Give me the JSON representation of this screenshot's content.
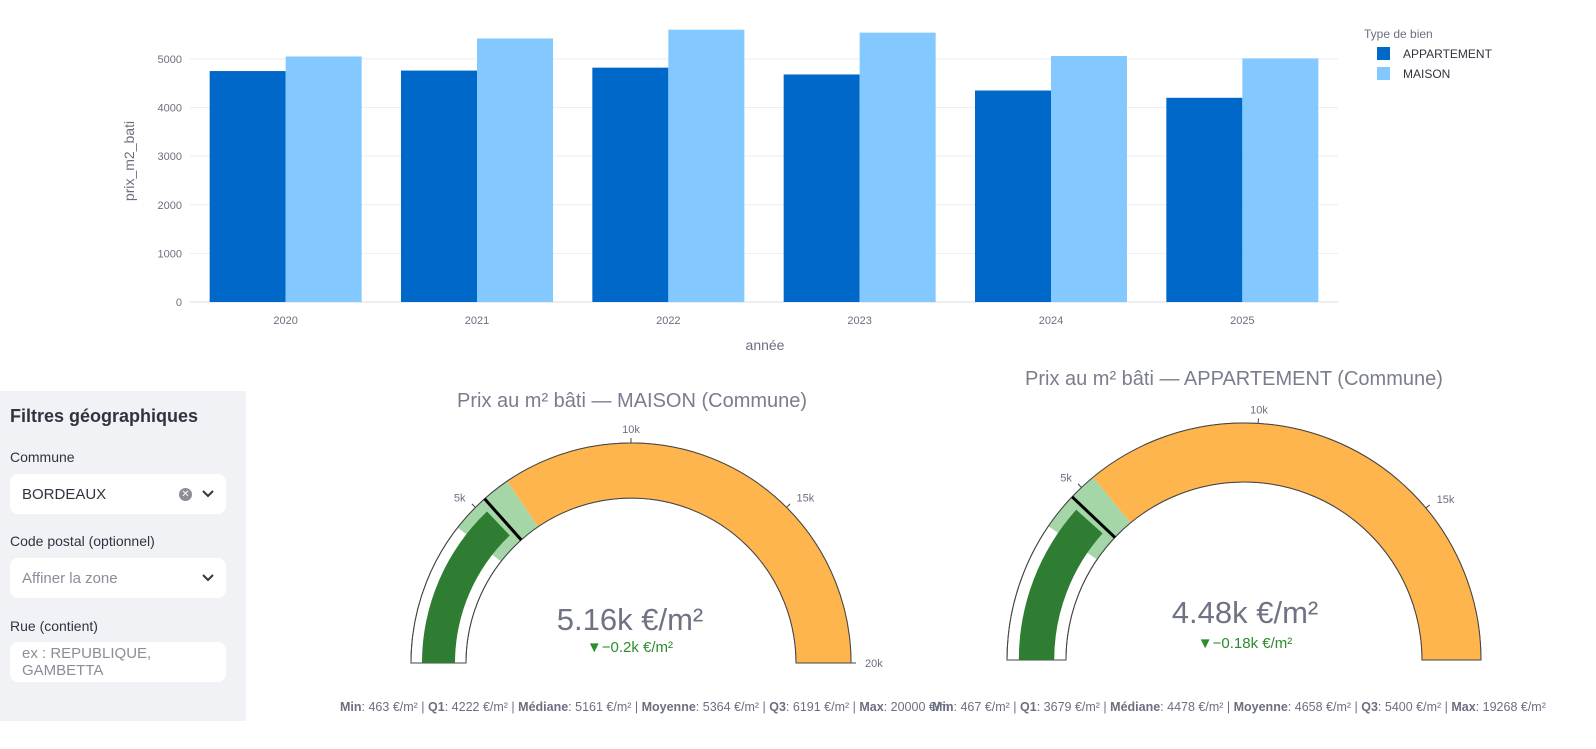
{
  "chart_data": [
    {
      "type": "bar",
      "title": "",
      "xlabel": "année",
      "ylabel": "prix_m2_bati",
      "ylim": [
        0,
        5800
      ],
      "yticks": [
        0,
        1000,
        2000,
        3000,
        4000,
        5000
      ],
      "categories": [
        "2020",
        "2021",
        "2022",
        "2023",
        "2024",
        "2025"
      ],
      "legend_title": "Type de bien",
      "legend_position": "top-right",
      "series": [
        {
          "name": "APPARTEMENT",
          "color": "#0068c9",
          "values": [
            4750,
            4760,
            4820,
            4680,
            4350,
            4200
          ]
        },
        {
          "name": "MAISON",
          "color": "#83c9ff",
          "values": [
            5050,
            5420,
            5600,
            5540,
            5060,
            5010
          ]
        }
      ]
    },
    {
      "type": "gauge",
      "title": "Prix au m² bâti — MAISON (Commune)",
      "range": [
        0,
        20000
      ],
      "ticks": [
        {
          "v": 5000,
          "label": "5k"
        },
        {
          "v": 10000,
          "label": "10k"
        },
        {
          "v": 15000,
          "label": "15k"
        },
        {
          "v": 20000,
          "label": "20k"
        }
      ],
      "value": 5161,
      "value_text": "5.16k €/m²",
      "delta_text": "▼−0.2k €/m²",
      "bar_value": 5161,
      "steps": [
        {
          "from": 4222,
          "to": 6191,
          "color": "#a5d6a7"
        },
        {
          "from": 6191,
          "to": 20000,
          "color": "#ffb54d"
        }
      ],
      "threshold": 5364,
      "stats": [
        {
          "label": "Min",
          "value": "463 €/m²"
        },
        {
          "label": "Q1",
          "value": "4222 €/m²"
        },
        {
          "label": "Médiane",
          "value": "5161 €/m²"
        },
        {
          "label": "Moyenne",
          "value": "5364 €/m²"
        },
        {
          "label": "Q3",
          "value": "6191 €/m²"
        },
        {
          "label": "Max",
          "value": "20000 €/m"
        }
      ]
    },
    {
      "type": "gauge",
      "title": "Prix au m² bâti — APPARTEMENT (Commune)",
      "range": [
        0,
        19268
      ],
      "ticks": [
        {
          "v": 5000,
          "label": "5k"
        },
        {
          "v": 10000,
          "label": "10k"
        },
        {
          "v": 15000,
          "label": "15k"
        }
      ],
      "value": 4478,
      "value_text": "4.48k €/m²",
      "delta_text": "▼−0.18k €/m²",
      "bar_value": 4478,
      "steps": [
        {
          "from": 3679,
          "to": 5400,
          "color": "#a5d6a7"
        },
        {
          "from": 5400,
          "to": 19268,
          "color": "#ffb54d"
        }
      ],
      "threshold": 4658,
      "stats": [
        {
          "label": "Min",
          "value": "467 €/m²"
        },
        {
          "label": "Q1",
          "value": "3679 €/m²"
        },
        {
          "label": "Médiane",
          "value": "4478 €/m²"
        },
        {
          "label": "Moyenne",
          "value": "4658 €/m²"
        },
        {
          "label": "Q3",
          "value": "5400 €/m²"
        },
        {
          "label": "Max",
          "value": "19268 €/m²"
        }
      ]
    }
  ],
  "sidebar": {
    "title": "Filtres géographiques",
    "commune_label": "Commune",
    "commune_value": "BORDEAUX",
    "postal_label": "Code postal (optionnel)",
    "postal_placeholder": "Affiner la zone",
    "street_label": "Rue (contient)",
    "street_placeholder": "ex : REPUBLIQUE, GAMBETTA"
  }
}
